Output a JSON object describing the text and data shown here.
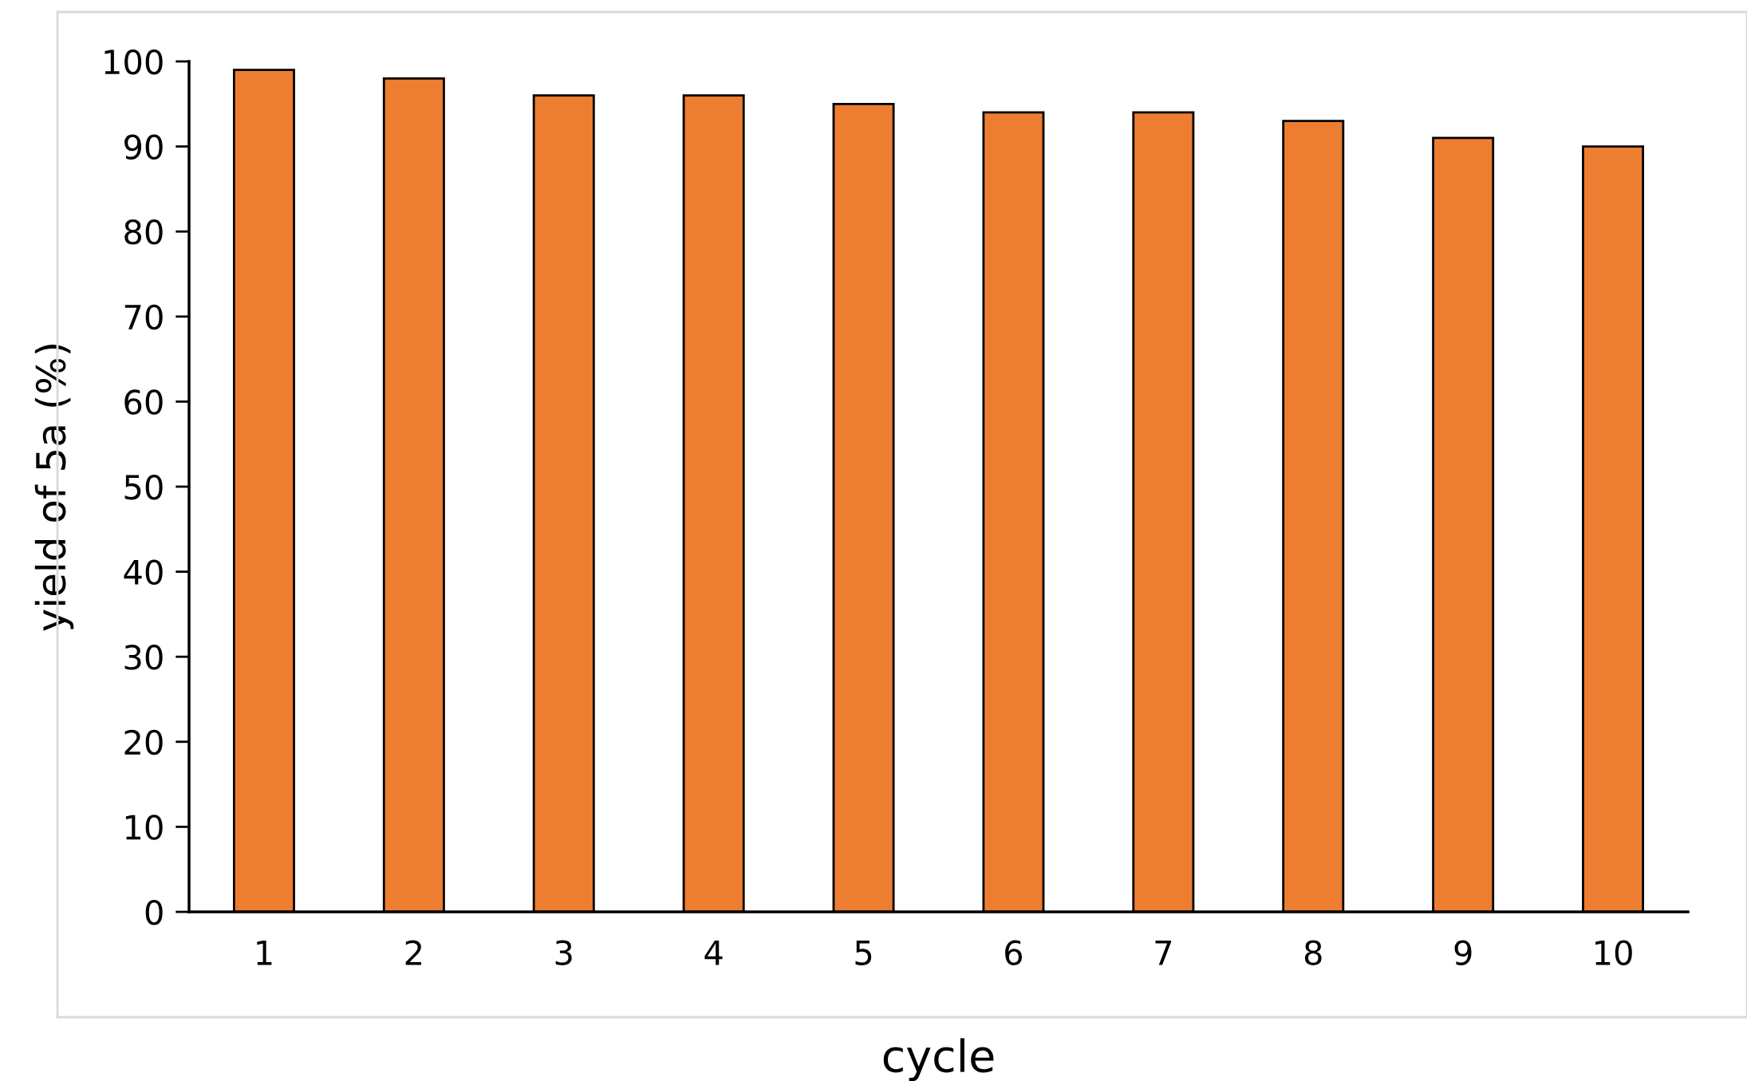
{
  "chart_data": {
    "type": "bar",
    "xlabel": "cycle",
    "ylabel": "yield of 5a (%)",
    "categories": [
      "1",
      "2",
      "3",
      "4",
      "5",
      "6",
      "7",
      "8",
      "9",
      "10"
    ],
    "values": [
      99,
      98,
      96,
      96,
      95,
      94,
      94,
      93,
      91,
      90
    ],
    "color": "#ed7d31",
    "ylim": [
      0,
      100
    ],
    "yticks": [
      0,
      10,
      20,
      30,
      40,
      50,
      60,
      70,
      80,
      90,
      100
    ],
    "grid": false,
    "legend": false
  }
}
